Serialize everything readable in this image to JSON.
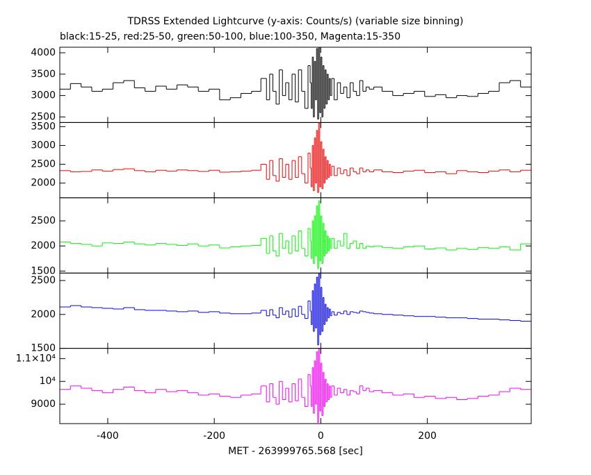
{
  "chart_data": [
    {
      "type": "line",
      "title": "TDRSS Extended Lightcurve (y-axis: Counts/s) (variable size binning)",
      "subtitle": "black:15-25, red:25-50, green:50-100, blue:100-350, Magenta:15-350",
      "color": "#000000",
      "xlim": [
        -490,
        395
      ],
      "ylim": [
        2370,
        4130
      ],
      "yticks": [
        2500,
        3000,
        3500,
        4000
      ],
      "x": [
        -480,
        -460,
        -440,
        -420,
        -400,
        -380,
        -360,
        -340,
        -320,
        -300,
        -280,
        -260,
        -240,
        -220,
        -200,
        -180,
        -160,
        -140,
        -120,
        -105,
        -99,
        -93,
        -87,
        -81,
        -75,
        -69,
        -63,
        -57,
        -51,
        -45,
        -39,
        -33,
        -27,
        -21,
        -19,
        -17,
        -15,
        -13,
        -11,
        -9,
        -7,
        -5,
        -3,
        -1,
        1,
        3,
        5,
        7,
        9,
        11,
        13,
        15,
        17,
        19,
        22,
        28,
        34,
        40,
        46,
        52,
        58,
        64,
        70,
        76,
        82,
        88,
        94,
        105,
        125,
        145,
        165,
        185,
        205,
        225,
        245,
        265,
        285,
        305,
        325,
        345,
        365,
        385
      ],
      "values": [
        3150,
        3280,
        3200,
        3100,
        3150,
        3300,
        3350,
        3180,
        3100,
        3220,
        3150,
        3250,
        3200,
        3100,
        3150,
        2900,
        2950,
        3050,
        3100,
        3400,
        2900,
        3500,
        3100,
        2800,
        3600,
        3000,
        3300,
        2900,
        3500,
        2850,
        3600,
        3100,
        2700,
        3700,
        3300,
        2700,
        3900,
        2500,
        3800,
        2900,
        4100,
        2450,
        4130,
        2600,
        3900,
        2500,
        3700,
        2700,
        3600,
        2800,
        3500,
        2900,
        3400,
        3000,
        3400,
        2900,
        3300,
        3050,
        3200,
        2950,
        3300,
        3100,
        3000,
        3350,
        3100,
        3200,
        3150,
        3200,
        3100,
        3000,
        3050,
        3100,
        2980,
        3020,
        2950,
        3000,
        2980,
        3050,
        3100,
        3300,
        3350,
        3200
      ]
    },
    {
      "type": "line",
      "color": "#ff0000",
      "xlim": [
        -490,
        395
      ],
      "ylim": [
        1610,
        3610
      ],
      "yticks": [
        2000,
        2500,
        3000,
        3500
      ],
      "x": [
        -480,
        -460,
        -440,
        -420,
        -400,
        -380,
        -360,
        -340,
        -320,
        -300,
        -280,
        -260,
        -240,
        -220,
        -200,
        -180,
        -160,
        -140,
        -120,
        -105,
        -99,
        -93,
        -87,
        -81,
        -75,
        -69,
        -63,
        -57,
        -51,
        -45,
        -39,
        -33,
        -27,
        -21,
        -19,
        -17,
        -15,
        -13,
        -11,
        -9,
        -7,
        -5,
        -3,
        -1,
        1,
        3,
        5,
        7,
        9,
        11,
        13,
        15,
        17,
        19,
        22,
        28,
        34,
        40,
        46,
        52,
        58,
        64,
        70,
        76,
        82,
        88,
        94,
        105,
        125,
        145,
        165,
        185,
        205,
        225,
        245,
        265,
        285,
        305,
        325,
        345,
        365,
        385
      ],
      "values": [
        2330,
        2300,
        2310,
        2350,
        2320,
        2360,
        2380,
        2330,
        2300,
        2340,
        2320,
        2350,
        2330,
        2310,
        2340,
        2290,
        2300,
        2320,
        2340,
        2500,
        2100,
        2600,
        2200,
        2050,
        2650,
        2150,
        2500,
        2100,
        2600,
        2150,
        2700,
        2250,
        2000,
        2800,
        2400,
        1900,
        3000,
        1800,
        3200,
        2000,
        3400,
        1750,
        3600,
        1900,
        3100,
        1850,
        2900,
        2000,
        2700,
        2100,
        2600,
        2150,
        2500,
        2200,
        2450,
        2200,
        2400,
        2250,
        2350,
        2200,
        2400,
        2300,
        2250,
        2400,
        2300,
        2350,
        2300,
        2350,
        2300,
        2280,
        2320,
        2340,
        2280,
        2300,
        2250,
        2330,
        2300,
        2280,
        2320,
        2350,
        2300,
        2340
      ]
    },
    {
      "type": "line",
      "color": "#00ff00",
      "xlim": [
        -490,
        395
      ],
      "ylim": [
        1460,
        2960
      ],
      "yticks": [
        1500,
        2000,
        2500
      ],
      "x": [
        -480,
        -460,
        -440,
        -420,
        -400,
        -380,
        -360,
        -340,
        -320,
        -300,
        -280,
        -260,
        -240,
        -220,
        -200,
        -180,
        -160,
        -140,
        -120,
        -105,
        -99,
        -93,
        -87,
        -81,
        -75,
        -69,
        -63,
        -57,
        -51,
        -45,
        -39,
        -33,
        -27,
        -21,
        -19,
        -17,
        -15,
        -13,
        -11,
        -9,
        -7,
        -5,
        -3,
        -1,
        1,
        3,
        5,
        7,
        9,
        11,
        13,
        15,
        17,
        19,
        22,
        28,
        34,
        40,
        46,
        52,
        58,
        64,
        70,
        76,
        82,
        88,
        94,
        105,
        125,
        145,
        165,
        185,
        205,
        225,
        245,
        265,
        285,
        305,
        325,
        345,
        365,
        385
      ],
      "values": [
        2080,
        2050,
        2030,
        2000,
        2060,
        2050,
        2080,
        2040,
        2020,
        2050,
        2030,
        2010,
        2040,
        2000,
        2020,
        1960,
        1980,
        2000,
        2010,
        2150,
        1850,
        2200,
        1900,
        1800,
        2250,
        1950,
        2100,
        1850,
        2200,
        1900,
        2300,
        1950,
        1800,
        2350,
        2100,
        1750,
        2500,
        1650,
        2600,
        1800,
        2800,
        1550,
        2900,
        1700,
        2600,
        1650,
        2450,
        1800,
        2300,
        1850,
        2200,
        1900,
        2150,
        1950,
        2150,
        1950,
        2100,
        2000,
        2250,
        1950,
        2050,
        2100,
        1950,
        2050,
        1950,
        2000,
        1980,
        2000,
        1970,
        1950,
        1980,
        2000,
        1940,
        1960,
        1920,
        1950,
        1930,
        1970,
        1950,
        1980,
        1920,
        2040
      ]
    },
    {
      "type": "line",
      "color": "#0000ff",
      "xlim": [
        -490,
        395
      ],
      "ylim": [
        1500,
        2610
      ],
      "yticks": [
        1500,
        2000,
        2500
      ],
      "x": [
        -480,
        -460,
        -440,
        -420,
        -400,
        -380,
        -360,
        -340,
        -320,
        -300,
        -280,
        -260,
        -240,
        -220,
        -200,
        -180,
        -160,
        -140,
        -120,
        -105,
        -99,
        -93,
        -87,
        -81,
        -75,
        -69,
        -63,
        -57,
        -51,
        -45,
        -39,
        -33,
        -27,
        -21,
        -19,
        -17,
        -15,
        -13,
        -11,
        -9,
        -7,
        -5,
        -3,
        -1,
        1,
        3,
        5,
        7,
        9,
        11,
        13,
        15,
        17,
        19,
        22,
        28,
        34,
        40,
        46,
        52,
        58,
        64,
        70,
        76,
        82,
        88,
        94,
        105,
        125,
        145,
        165,
        185,
        205,
        225,
        245,
        265,
        285,
        305,
        325,
        345,
        365,
        385
      ],
      "values": [
        2110,
        2130,
        2110,
        2100,
        2090,
        2080,
        2100,
        2070,
        2060,
        2060,
        2050,
        2040,
        2050,
        2030,
        2040,
        2020,
        2010,
        2010,
        2020,
        2060,
        1980,
        2070,
        1990,
        1950,
        2100,
        2000,
        2050,
        1960,
        2080,
        1970,
        2120,
        2000,
        1940,
        2200,
        2050,
        1850,
        2350,
        1750,
        2450,
        1800,
        2550,
        1550,
        2600,
        1700,
        2400,
        1750,
        2250,
        1850,
        2150,
        1900,
        2100,
        1950,
        2080,
        1980,
        2040,
        1990,
        2030,
        2010,
        2050,
        2000,
        2040,
        2030,
        2020,
        2050,
        2040,
        2030,
        2020,
        2010,
        2000,
        1990,
        1980,
        1970,
        1970,
        1960,
        1950,
        1950,
        1940,
        1930,
        1930,
        1920,
        1910,
        1900
      ]
    },
    {
      "type": "line",
      "color": "#ff00ff",
      "xlim": [
        -490,
        395
      ],
      "ylim": [
        8150,
        11450
      ],
      "yticks": [
        9000,
        {
          "value": 10000,
          "label": "10⁴"
        },
        {
          "value": 11000,
          "label": "1.1×10⁴"
        }
      ],
      "xlabel": "MET - 263999765.568 [sec]",
      "xticks": [
        -400,
        -200,
        0,
        200
      ],
      "x": [
        -480,
        -460,
        -440,
        -420,
        -400,
        -380,
        -360,
        -340,
        -320,
        -300,
        -280,
        -260,
        -240,
        -220,
        -200,
        -180,
        -160,
        -140,
        -120,
        -105,
        -99,
        -93,
        -87,
        -81,
        -75,
        -69,
        -63,
        -57,
        -51,
        -45,
        -39,
        -33,
        -27,
        -21,
        -19,
        -17,
        -15,
        -13,
        -11,
        -9,
        -7,
        -5,
        -3,
        -1,
        1,
        3,
        5,
        7,
        9,
        11,
        13,
        15,
        17,
        19,
        22,
        28,
        34,
        40,
        46,
        52,
        58,
        64,
        70,
        76,
        82,
        88,
        94,
        105,
        125,
        145,
        165,
        185,
        205,
        225,
        245,
        265,
        285,
        305,
        325,
        345,
        365,
        385
      ],
      "values": [
        9650,
        9800,
        9700,
        9600,
        9500,
        9650,
        9750,
        9600,
        9500,
        9650,
        9550,
        9600,
        9500,
        9400,
        9450,
        9350,
        9300,
        9400,
        9450,
        9800,
        9100,
        9900,
        9300,
        9000,
        10000,
        9200,
        9700,
        9100,
        9900,
        9150,
        10100,
        9300,
        8900,
        10300,
        9800,
        8900,
        10600,
        8600,
        10900,
        9000,
        11300,
        8200,
        11450,
        8700,
        10800,
        8500,
        10400,
        8900,
        10100,
        9100,
        9900,
        9200,
        9800,
        9300,
        9800,
        9400,
        9700,
        9500,
        9650,
        9400,
        9600,
        9550,
        9450,
        9800,
        9600,
        9700,
        9550,
        9600,
        9500,
        9400,
        9450,
        9300,
        9350,
        9250,
        9300,
        9200,
        9250,
        9350,
        9400,
        9550,
        9700,
        9650
      ]
    }
  ]
}
